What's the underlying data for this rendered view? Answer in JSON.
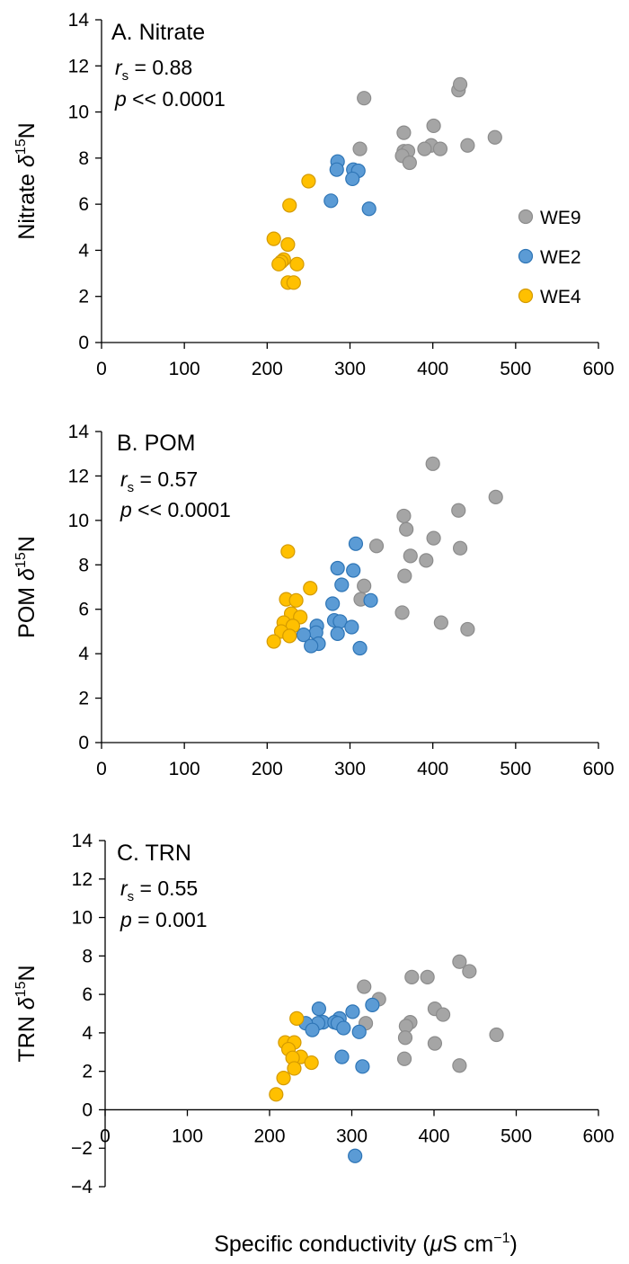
{
  "figure": {
    "xlabel": {
      "pre": "Specific conductivity (",
      "mu": "μ",
      "post": "S cm",
      "sup": "−1",
      "close": ")"
    },
    "colors": {
      "WE9": "#A5A5A5",
      "WE2": "#5B9BD5",
      "WE4": "#FFC000",
      "WE9_edge": "#8C8C8C",
      "WE2_edge": "#2E75B6",
      "WE4_edge": "#D49A00"
    }
  },
  "legend": [
    {
      "key": "WE9",
      "label": "WE9"
    },
    {
      "key": "WE2",
      "label": "WE2"
    },
    {
      "key": "WE4",
      "label": "WE4"
    }
  ],
  "chart_data": [
    {
      "type": "scatter",
      "title": "A. Nitrate",
      "ylabel": {
        "pre": "Nitrate ",
        "delta": "δ",
        "sup": "15",
        "post": "N"
      },
      "stat_r": {
        "r": "r",
        "sub": "s",
        "rest": " = 0.88"
      },
      "stat_p": {
        "p": "p",
        "rest": " << 0.0001"
      },
      "xlim": [
        0,
        600
      ],
      "ylim": [
        0,
        14
      ],
      "xticks": [
        "0",
        "100",
        "200",
        "300",
        "400",
        "500",
        "600"
      ],
      "yticks": [
        "0",
        "2",
        "4",
        "6",
        "8",
        "10",
        "12",
        "14"
      ],
      "legend_position": "right",
      "series": [
        {
          "name": "WE9",
          "points": [
            [
              317,
              10.6
            ],
            [
              431,
              10.95
            ],
            [
              433,
              11.2
            ],
            [
              401,
              9.4
            ],
            [
              365,
              9.1
            ],
            [
              475,
              8.9
            ],
            [
              312,
              8.4
            ],
            [
              365,
              8.3
            ],
            [
              370,
              8.3
            ],
            [
              398,
              8.55
            ],
            [
              442,
              8.55
            ],
            [
              409,
              8.4
            ],
            [
              390,
              8.4
            ],
            [
              363,
              8.1
            ],
            [
              372,
              7.8
            ]
          ]
        },
        {
          "name": "WE2",
          "points": [
            [
              285,
              7.85
            ],
            [
              284,
              7.5
            ],
            [
              304,
              7.5
            ],
            [
              310,
              7.45
            ],
            [
              303,
              7.1
            ],
            [
              277,
              6.15
            ],
            [
              323,
              5.8
            ]
          ]
        },
        {
          "name": "WE4",
          "points": [
            [
              250,
              7.0
            ],
            [
              227,
              5.95
            ],
            [
              208,
              4.5
            ],
            [
              225,
              4.25
            ],
            [
              220,
              3.6
            ],
            [
              217,
              3.5
            ],
            [
              214,
              3.4
            ],
            [
              236,
              3.4
            ],
            [
              225,
              2.6
            ],
            [
              232,
              2.6
            ]
          ]
        }
      ]
    },
    {
      "type": "scatter",
      "title": "B. POM",
      "ylabel": {
        "pre": "POM ",
        "delta": "δ",
        "sup": "15",
        "post": "N"
      },
      "stat_r": {
        "r": "r",
        "sub": "s",
        "rest": " = 0.57"
      },
      "stat_p": {
        "p": "p",
        "rest": " << 0.0001"
      },
      "xlim": [
        0,
        600
      ],
      "ylim": [
        0,
        14
      ],
      "xticks": [
        "0",
        "100",
        "200",
        "300",
        "400",
        "500",
        "600"
      ],
      "yticks": [
        "0",
        "2",
        "4",
        "6",
        "8",
        "10",
        "12",
        "14"
      ],
      "series": [
        {
          "name": "WE9",
          "points": [
            [
              400,
              12.55
            ],
            [
              476,
              11.05
            ],
            [
              365,
              10.2
            ],
            [
              431,
              10.45
            ],
            [
              368,
              9.6
            ],
            [
              401,
              9.2
            ],
            [
              332,
              8.85
            ],
            [
              433,
              8.75
            ],
            [
              373,
              8.4
            ],
            [
              392,
              8.2
            ],
            [
              366,
              7.5
            ],
            [
              317,
              7.05
            ],
            [
              313,
              6.45
            ],
            [
              363,
              5.85
            ],
            [
              410,
              5.4
            ],
            [
              442,
              5.1
            ]
          ]
        },
        {
          "name": "WE2",
          "points": [
            [
              307,
              8.95
            ],
            [
              285,
              7.85
            ],
            [
              304,
              7.75
            ],
            [
              290,
              7.1
            ],
            [
              325,
              6.4
            ],
            [
              279,
              6.25
            ],
            [
              281,
              5.5
            ],
            [
              288,
              5.45
            ],
            [
              260,
              5.25
            ],
            [
              302,
              5.2
            ],
            [
              259,
              4.95
            ],
            [
              285,
              4.9
            ],
            [
              244,
              4.85
            ],
            [
              262,
              4.45
            ],
            [
              253,
              4.35
            ],
            [
              312,
              4.25
            ]
          ]
        },
        {
          "name": "WE4",
          "points": [
            [
              225,
              8.6
            ],
            [
              252,
              6.95
            ],
            [
              223,
              6.45
            ],
            [
              235,
              6.4
            ],
            [
              229,
              5.8
            ],
            [
              240,
              5.65
            ],
            [
              220,
              5.4
            ],
            [
              231,
              5.25
            ],
            [
              217,
              5.0
            ],
            [
              227,
              4.8
            ],
            [
              208,
              4.55
            ]
          ]
        }
      ]
    },
    {
      "type": "scatter",
      "title": "C. TRN",
      "ylabel": {
        "pre": "TRN ",
        "delta": "δ",
        "sup": "15",
        "post": "N"
      },
      "stat_r": {
        "r": "r",
        "sub": "s",
        "rest": " = 0.55"
      },
      "stat_p": {
        "p": "p",
        "rest": " = 0.001"
      },
      "xlim": [
        0,
        600
      ],
      "ylim": [
        -4,
        14
      ],
      "xticks": [
        "0",
        "100",
        "200",
        "300",
        "400",
        "500",
        "600"
      ],
      "yticks": [
        "−4",
        "−2",
        "0",
        "2",
        "4",
        "6",
        "8",
        "10",
        "12",
        "14"
      ],
      "series": [
        {
          "name": "WE9",
          "points": [
            [
              431,
              7.7
            ],
            [
              443,
              7.2
            ],
            [
              373,
              6.9
            ],
            [
              392,
              6.9
            ],
            [
              315,
              6.4
            ],
            [
              333,
              5.75
            ],
            [
              401,
              5.25
            ],
            [
              411,
              4.95
            ],
            [
              371,
              4.55
            ],
            [
              317,
              4.5
            ],
            [
              366,
              4.35
            ],
            [
              365,
              3.75
            ],
            [
              476,
              3.9
            ],
            [
              401,
              3.45
            ],
            [
              364,
              2.65
            ],
            [
              431,
              2.3
            ]
          ]
        },
        {
          "name": "WE2",
          "points": [
            [
              260,
              5.25
            ],
            [
              301,
              5.1
            ],
            [
              325,
              5.45
            ],
            [
              285,
              4.75
            ],
            [
              265,
              4.55
            ],
            [
              259,
              4.5
            ],
            [
              279,
              4.55
            ],
            [
              283,
              4.5
            ],
            [
              244,
              4.5
            ],
            [
              252,
              4.15
            ],
            [
              290,
              4.25
            ],
            [
              309,
              4.05
            ],
            [
              288,
              2.75
            ],
            [
              313,
              2.25
            ],
            [
              304,
              -2.4
            ]
          ]
        },
        {
          "name": "WE4",
          "points": [
            [
              233,
              4.75
            ],
            [
              219,
              3.5
            ],
            [
              230,
              3.5
            ],
            [
              223,
              3.15
            ],
            [
              238,
              2.75
            ],
            [
              228,
              2.7
            ],
            [
              251,
              2.45
            ],
            [
              230,
              2.15
            ],
            [
              217,
              1.65
            ],
            [
              208,
              0.8
            ]
          ]
        }
      ]
    }
  ]
}
